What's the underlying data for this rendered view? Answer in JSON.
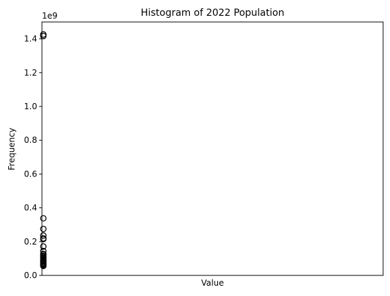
{
  "chart_data": {
    "type": "scatter",
    "title": "Histogram of 2022 Population",
    "xlabel": "Value",
    "ylabel": "Frequency",
    "offset_label": "1e9",
    "scale": 1000000000,
    "ylim": [
      0,
      1.5
    ],
    "y_ticks": [
      0.0,
      0.2,
      0.4,
      0.6,
      0.8,
      1.0,
      1.2,
      1.4
    ],
    "y_tick_labels": [
      "0.0",
      "0.2",
      "0.4",
      "0.6",
      "0.8",
      "1.0",
      "1.2",
      "1.4"
    ],
    "x_ticks": [],
    "grid": false,
    "marker": "open-circle",
    "marker_color": "#000000",
    "points": [
      {
        "x": 0,
        "y": 1.426
      },
      {
        "x": 0,
        "y": 1.417
      },
      {
        "x": 0,
        "y": 0.338
      },
      {
        "x": 0,
        "y": 0.275
      },
      {
        "x": 0,
        "y": 0.236
      },
      {
        "x": 0,
        "y": 0.219
      },
      {
        "x": 0,
        "y": 0.215
      },
      {
        "x": 0,
        "y": 0.171
      },
      {
        "x": 0,
        "y": 0.144
      },
      {
        "x": 0,
        "y": 0.127
      },
      {
        "x": 0,
        "y": 0.123
      },
      {
        "x": 0,
        "y": 0.115
      },
      {
        "x": 0,
        "y": 0.11
      },
      {
        "x": 0,
        "y": 0.104
      },
      {
        "x": 0,
        "y": 0.099
      },
      {
        "x": 0,
        "y": 0.089
      },
      {
        "x": 0,
        "y": 0.085
      },
      {
        "x": 0,
        "y": 0.083
      },
      {
        "x": 0,
        "y": 0.077
      },
      {
        "x": 0,
        "y": 0.071
      },
      {
        "x": 0,
        "y": 0.068
      },
      {
        "x": 0,
        "y": 0.065
      },
      {
        "x": 0,
        "y": 0.06
      },
      {
        "x": 0,
        "y": 0.056
      }
    ]
  }
}
